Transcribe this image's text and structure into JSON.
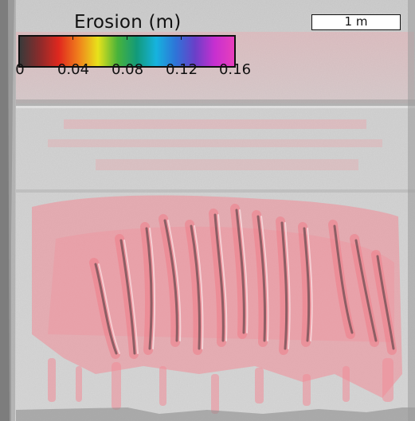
{
  "legend": {
    "title": "Erosion (m)",
    "min": 0,
    "max": 0.16,
    "tick_labels": [
      "0",
      "0.04",
      "0.08",
      "0.12",
      "0.16"
    ],
    "tick_values": [
      0,
      0.04,
      0.08,
      0.12,
      0.16
    ],
    "colormap": [
      "#3a3a3a",
      "#8a2b2b",
      "#e0281e",
      "#f07f1c",
      "#e8e21b",
      "#49b33a",
      "#129a7a",
      "#16b3de",
      "#2e74d8",
      "#6a3fc8",
      "#c72fd0",
      "#e83fbc"
    ]
  },
  "scale_bar": {
    "label": "1 m"
  },
  "colors": {
    "terrain_base": "#c9c9c9",
    "erosion_overlay": "#f08c96",
    "background_left_strip": "#8f8f8f"
  }
}
